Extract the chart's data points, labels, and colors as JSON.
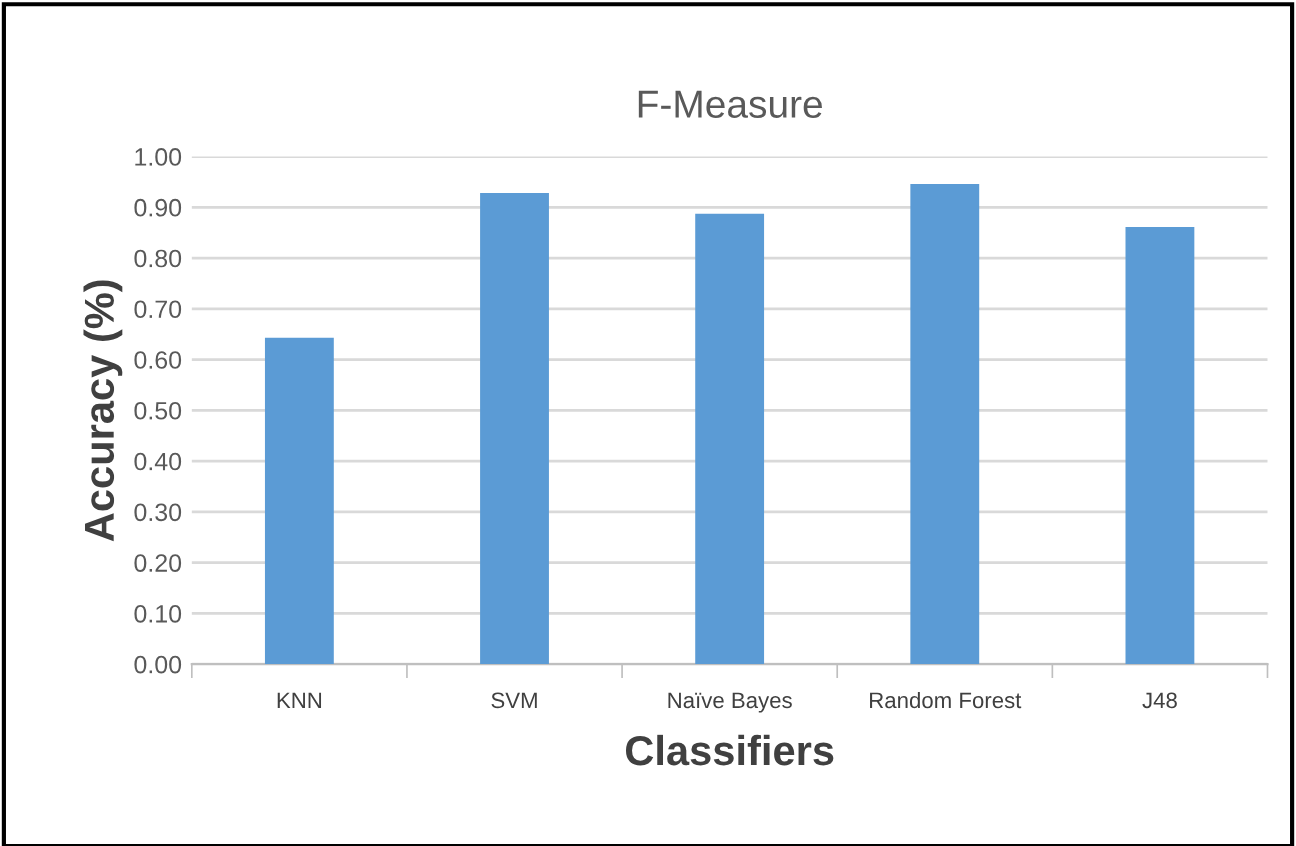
{
  "chart_data": {
    "type": "bar",
    "title": "F-Measure",
    "xlabel": "Classifiers",
    "ylabel": "Accuracy (%)",
    "categories": [
      "KNN",
      "SVM",
      "Naïve Bayes",
      "Random Forest",
      "J48"
    ],
    "values": [
      0.643,
      0.928,
      0.887,
      0.946,
      0.861
    ],
    "color": "#5b9bd5",
    "ylim": [
      0,
      1.0
    ],
    "yticks": [
      {
        "value": 0,
        "label": "0.00"
      },
      {
        "value": 0.1,
        "label": "0.10"
      },
      {
        "value": 0.2,
        "label": "0.20"
      },
      {
        "value": 0.3,
        "label": "0.30"
      },
      {
        "value": 0.4,
        "label": "0.40"
      },
      {
        "value": 0.5,
        "label": "0.50"
      },
      {
        "value": 0.6,
        "label": "0.60"
      },
      {
        "value": 0.7,
        "label": "0.70"
      },
      {
        "value": 0.8,
        "label": "0.80"
      },
      {
        "value": 0.9,
        "label": "0.90"
      },
      {
        "value": 1.0,
        "label": "1.00"
      }
    ],
    "grid": "y",
    "legend": false
  }
}
